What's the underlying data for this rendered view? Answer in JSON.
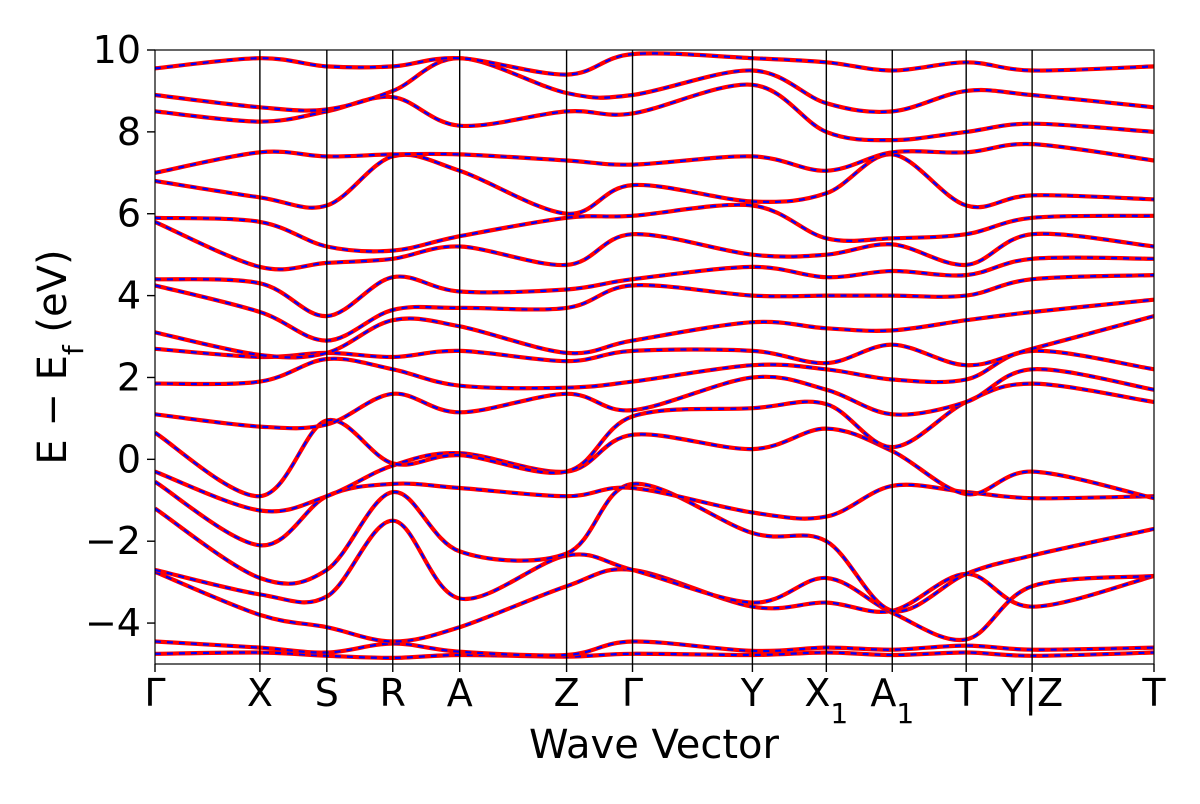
{
  "chart_data": {
    "type": "line",
    "xlabel": "Wave Vector",
    "ylabel": "E − E_f (eV)",
    "ylabel_parts": {
      "main": "E − E",
      "sub": "f",
      "unit": " (eV)"
    },
    "ylim": [
      -5,
      10
    ],
    "y_ticks": [
      -4,
      -2,
      0,
      2,
      4,
      6,
      8,
      10
    ],
    "y_tick_labels": [
      "−4",
      "−2",
      "0",
      "2",
      "4",
      "6",
      "8",
      "10"
    ],
    "x_ticks": [
      {
        "label": "Γ"
      },
      {
        "label": "X"
      },
      {
        "label": "S"
      },
      {
        "label": "R"
      },
      {
        "label": "A"
      },
      {
        "label": "Z"
      },
      {
        "label": "Γ"
      },
      {
        "label": "Y"
      },
      {
        "label": "X",
        "sub": "1"
      },
      {
        "label": "A",
        "sub": "1"
      },
      {
        "label": "T"
      },
      {
        "label": "Y|Z"
      },
      {
        "label": "T"
      }
    ],
    "x_tick_positions": [
      0,
      0.105,
      0.172,
      0.238,
      0.305,
      0.412,
      0.478,
      0.598,
      0.672,
      0.738,
      0.812,
      0.878,
      1.0
    ],
    "path_break_after_index": 11,
    "series_style": [
      {
        "name": "",
        "color": "#0000ff",
        "dash": "dashed"
      },
      {
        "name": "",
        "color": "#ff0000",
        "dash": "solid"
      }
    ],
    "bands": [
      {
        "id": 1,
        "nodes": [
          [
            0,
            -4.75
          ],
          [
            0.105,
            -4.72
          ],
          [
            0.172,
            -4.8
          ],
          [
            0.238,
            -4.85
          ],
          [
            0.305,
            -4.78
          ],
          [
            0.412,
            -4.82
          ],
          [
            0.478,
            -4.75
          ],
          [
            0.598,
            -4.78
          ],
          [
            0.672,
            -4.72
          ],
          [
            0.738,
            -4.78
          ],
          [
            0.812,
            -4.72
          ],
          [
            0.878,
            -4.8
          ],
          [
            1.0,
            -4.72
          ]
        ]
      },
      {
        "id": 2,
        "nodes": [
          [
            0,
            -4.45
          ],
          [
            0.105,
            -4.6
          ],
          [
            0.172,
            -4.72
          ],
          [
            0.238,
            -4.5
          ],
          [
            0.305,
            -4.7
          ],
          [
            0.412,
            -4.78
          ],
          [
            0.478,
            -4.45
          ],
          [
            0.598,
            -4.68
          ],
          [
            0.672,
            -4.6
          ],
          [
            0.738,
            -4.65
          ],
          [
            0.812,
            -4.55
          ],
          [
            0.878,
            -4.65
          ],
          [
            1.0,
            -4.6
          ]
        ]
      },
      {
        "id": 3,
        "nodes": [
          [
            0,
            -2.75
          ],
          [
            0.105,
            -3.8
          ],
          [
            0.172,
            -4.1
          ],
          [
            0.238,
            -4.45
          ],
          [
            0.305,
            -4.1
          ],
          [
            0.412,
            -3.1
          ],
          [
            0.478,
            -2.7
          ],
          [
            0.598,
            -3.6
          ],
          [
            0.672,
            -3.5
          ],
          [
            0.738,
            -3.7
          ],
          [
            0.812,
            -2.8
          ],
          [
            0.878,
            -3.6
          ],
          [
            1.0,
            -2.85
          ]
        ]
      },
      {
        "id": 4,
        "nodes": [
          [
            0,
            -2.7
          ],
          [
            0.105,
            -3.3
          ],
          [
            0.172,
            -3.35
          ],
          [
            0.238,
            -1.5
          ],
          [
            0.305,
            -3.4
          ],
          [
            0.412,
            -2.35
          ],
          [
            0.478,
            -2.7
          ],
          [
            0.598,
            -3.5
          ],
          [
            0.672,
            -2.9
          ],
          [
            0.738,
            -3.75
          ],
          [
            0.812,
            -4.4
          ],
          [
            0.878,
            -3.1
          ],
          [
            1.0,
            -2.85
          ]
        ]
      },
      {
        "id": 5,
        "nodes": [
          [
            0,
            -1.2
          ],
          [
            0.105,
            -2.9
          ],
          [
            0.172,
            -2.7
          ],
          [
            0.238,
            -0.8
          ],
          [
            0.305,
            -2.25
          ],
          [
            0.412,
            -2.3
          ],
          [
            0.478,
            -0.6
          ],
          [
            0.598,
            -1.8
          ],
          [
            0.672,
            -2.0
          ],
          [
            0.738,
            -3.7
          ],
          [
            0.812,
            -2.8
          ],
          [
            0.878,
            -2.35
          ],
          [
            1.0,
            -1.7
          ]
        ]
      },
      {
        "id": 6,
        "nodes": [
          [
            0,
            -0.55
          ],
          [
            0.105,
            -2.1
          ],
          [
            0.172,
            -0.9
          ],
          [
            0.238,
            -0.6
          ],
          [
            0.305,
            -0.7
          ],
          [
            0.412,
            -0.9
          ],
          [
            0.478,
            -0.7
          ],
          [
            0.598,
            -1.3
          ],
          [
            0.672,
            -1.4
          ],
          [
            0.738,
            -0.65
          ],
          [
            0.812,
            -0.8
          ],
          [
            0.878,
            -0.95
          ],
          [
            1.0,
            -0.9
          ]
        ]
      },
      {
        "id": 7,
        "nodes": [
          [
            0,
            -0.3
          ],
          [
            0.105,
            -1.25
          ],
          [
            0.172,
            -0.9
          ],
          [
            0.238,
            -0.15
          ],
          [
            0.305,
            0.15
          ],
          [
            0.412,
            -0.3
          ],
          [
            0.478,
            0.6
          ],
          [
            0.598,
            0.25
          ],
          [
            0.672,
            0.75
          ],
          [
            0.738,
            0.2
          ],
          [
            0.812,
            -0.85
          ],
          [
            0.878,
            -0.3
          ],
          [
            1.0,
            -0.95
          ]
        ]
      },
      {
        "id": 8,
        "nodes": [
          [
            0,
            0.65
          ],
          [
            0.105,
            -0.9
          ],
          [
            0.172,
            0.95
          ],
          [
            0.238,
            -0.1
          ],
          [
            0.305,
            0.1
          ],
          [
            0.412,
            -0.3
          ],
          [
            0.478,
            1.05
          ],
          [
            0.598,
            1.25
          ],
          [
            0.672,
            1.35
          ],
          [
            0.738,
            0.3
          ],
          [
            0.812,
            1.4
          ],
          [
            0.878,
            1.85
          ],
          [
            1.0,
            1.4
          ]
        ]
      },
      {
        "id": 9,
        "nodes": [
          [
            0,
            1.1
          ],
          [
            0.105,
            0.8
          ],
          [
            0.172,
            0.85
          ],
          [
            0.238,
            1.6
          ],
          [
            0.305,
            1.15
          ],
          [
            0.412,
            1.6
          ],
          [
            0.478,
            1.2
          ],
          [
            0.598,
            2.0
          ],
          [
            0.672,
            1.7
          ],
          [
            0.738,
            1.1
          ],
          [
            0.812,
            1.4
          ],
          [
            0.878,
            2.2
          ],
          [
            1.0,
            1.7
          ]
        ]
      },
      {
        "id": 10,
        "nodes": [
          [
            0,
            1.85
          ],
          [
            0.105,
            1.9
          ],
          [
            0.172,
            2.45
          ],
          [
            0.238,
            2.2
          ],
          [
            0.305,
            1.8
          ],
          [
            0.412,
            1.75
          ],
          [
            0.478,
            1.9
          ],
          [
            0.598,
            2.3
          ],
          [
            0.672,
            2.2
          ],
          [
            0.738,
            1.95
          ],
          [
            0.812,
            1.95
          ],
          [
            0.878,
            2.65
          ],
          [
            1.0,
            2.2
          ]
        ]
      },
      {
        "id": 11,
        "nodes": [
          [
            0,
            2.7
          ],
          [
            0.105,
            2.5
          ],
          [
            0.172,
            2.6
          ],
          [
            0.238,
            2.5
          ],
          [
            0.305,
            2.65
          ],
          [
            0.412,
            2.4
          ],
          [
            0.478,
            2.65
          ],
          [
            0.598,
            2.65
          ],
          [
            0.672,
            2.35
          ],
          [
            0.738,
            2.8
          ],
          [
            0.812,
            2.3
          ],
          [
            0.878,
            2.7
          ],
          [
            1.0,
            3.5
          ]
        ]
      },
      {
        "id": 12,
        "nodes": [
          [
            0,
            3.1
          ],
          [
            0.105,
            2.55
          ],
          [
            0.172,
            2.6
          ],
          [
            0.238,
            3.4
          ],
          [
            0.305,
            3.25
          ],
          [
            0.412,
            2.6
          ],
          [
            0.478,
            2.9
          ],
          [
            0.598,
            3.35
          ],
          [
            0.672,
            3.2
          ],
          [
            0.738,
            3.15
          ],
          [
            0.812,
            3.4
          ],
          [
            0.878,
            3.6
          ],
          [
            1.0,
            3.9
          ]
        ]
      },
      {
        "id": 13,
        "nodes": [
          [
            0,
            4.25
          ],
          [
            0.105,
            3.6
          ],
          [
            0.172,
            2.9
          ],
          [
            0.238,
            3.65
          ],
          [
            0.305,
            3.7
          ],
          [
            0.412,
            3.7
          ],
          [
            0.478,
            4.25
          ],
          [
            0.598,
            4.0
          ],
          [
            0.672,
            4.0
          ],
          [
            0.738,
            4.0
          ],
          [
            0.812,
            4.0
          ],
          [
            0.878,
            4.4
          ],
          [
            1.0,
            4.5
          ]
        ]
      },
      {
        "id": 14,
        "nodes": [
          [
            0,
            4.4
          ],
          [
            0.105,
            4.3
          ],
          [
            0.172,
            3.5
          ],
          [
            0.238,
            4.45
          ],
          [
            0.305,
            4.1
          ],
          [
            0.412,
            4.15
          ],
          [
            0.478,
            4.4
          ],
          [
            0.598,
            4.7
          ],
          [
            0.672,
            4.45
          ],
          [
            0.738,
            4.6
          ],
          [
            0.812,
            4.5
          ],
          [
            0.878,
            4.9
          ],
          [
            1.0,
            4.9
          ]
        ]
      },
      {
        "id": 15,
        "nodes": [
          [
            0,
            5.8
          ],
          [
            0.105,
            4.7
          ],
          [
            0.172,
            4.8
          ],
          [
            0.238,
            4.9
          ],
          [
            0.305,
            5.2
          ],
          [
            0.412,
            4.75
          ],
          [
            0.478,
            5.5
          ],
          [
            0.598,
            5.0
          ],
          [
            0.672,
            5.0
          ],
          [
            0.738,
            5.25
          ],
          [
            0.812,
            4.75
          ],
          [
            0.878,
            5.5
          ],
          [
            1.0,
            5.2
          ]
        ]
      },
      {
        "id": 16,
        "nodes": [
          [
            0,
            5.9
          ],
          [
            0.105,
            5.8
          ],
          [
            0.172,
            5.2
          ],
          [
            0.238,
            5.1
          ],
          [
            0.305,
            5.45
          ],
          [
            0.412,
            5.9
          ],
          [
            0.478,
            5.95
          ],
          [
            0.598,
            6.2
          ],
          [
            0.672,
            5.4
          ],
          [
            0.738,
            5.4
          ],
          [
            0.812,
            5.5
          ],
          [
            0.878,
            5.9
          ],
          [
            1.0,
            5.95
          ]
        ]
      },
      {
        "id": 17,
        "nodes": [
          [
            0,
            6.8
          ],
          [
            0.105,
            6.4
          ],
          [
            0.172,
            6.2
          ],
          [
            0.238,
            7.4
          ],
          [
            0.305,
            7.05
          ],
          [
            0.412,
            6.0
          ],
          [
            0.478,
            6.7
          ],
          [
            0.598,
            6.3
          ],
          [
            0.672,
            6.5
          ],
          [
            0.738,
            7.45
          ],
          [
            0.812,
            6.2
          ],
          [
            0.878,
            6.45
          ],
          [
            1.0,
            6.35
          ]
        ]
      },
      {
        "id": 18,
        "nodes": [
          [
            0,
            7.0
          ],
          [
            0.105,
            7.5
          ],
          [
            0.172,
            7.4
          ],
          [
            0.238,
            7.45
          ],
          [
            0.305,
            7.45
          ],
          [
            0.412,
            7.3
          ],
          [
            0.478,
            7.2
          ],
          [
            0.598,
            7.4
          ],
          [
            0.672,
            7.05
          ],
          [
            0.738,
            7.5
          ],
          [
            0.812,
            7.5
          ],
          [
            0.878,
            7.7
          ],
          [
            1.0,
            7.3
          ]
        ]
      },
      {
        "id": 19,
        "nodes": [
          [
            0,
            8.5
          ],
          [
            0.105,
            8.25
          ],
          [
            0.172,
            8.5
          ],
          [
            0.238,
            8.85
          ],
          [
            0.305,
            8.15
          ],
          [
            0.412,
            8.5
          ],
          [
            0.478,
            8.45
          ],
          [
            0.598,
            9.15
          ],
          [
            0.672,
            8.0
          ],
          [
            0.738,
            7.8
          ],
          [
            0.812,
            8.0
          ],
          [
            0.878,
            8.2
          ],
          [
            1.0,
            8.0
          ]
        ]
      },
      {
        "id": 20,
        "nodes": [
          [
            0,
            8.9
          ],
          [
            0.105,
            8.6
          ],
          [
            0.172,
            8.55
          ],
          [
            0.238,
            9.0
          ],
          [
            0.305,
            9.8
          ],
          [
            0.412,
            8.95
          ],
          [
            0.478,
            8.9
          ],
          [
            0.598,
            9.5
          ],
          [
            0.672,
            8.7
          ],
          [
            0.738,
            8.5
          ],
          [
            0.812,
            9.0
          ],
          [
            0.878,
            8.9
          ],
          [
            1.0,
            8.6
          ]
        ]
      },
      {
        "id": 21,
        "nodes": [
          [
            0,
            9.55
          ],
          [
            0.105,
            9.8
          ],
          [
            0.172,
            9.6
          ],
          [
            0.238,
            9.6
          ],
          [
            0.305,
            9.8
          ],
          [
            0.412,
            9.4
          ],
          [
            0.478,
            9.9
          ],
          [
            0.598,
            9.8
          ],
          [
            0.672,
            9.7
          ],
          [
            0.738,
            9.5
          ],
          [
            0.812,
            9.7
          ],
          [
            0.878,
            9.5
          ],
          [
            1.0,
            9.6
          ]
        ]
      }
    ]
  }
}
